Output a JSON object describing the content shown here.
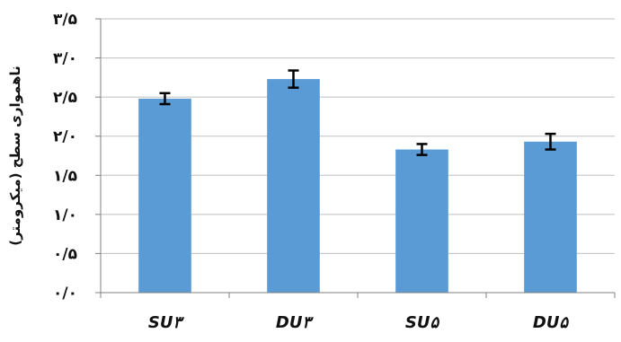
{
  "chart_data": {
    "type": "bar",
    "categories": [
      "SU۳",
      "DU۳",
      "SU۵",
      "DU۵"
    ],
    "values": [
      2.48,
      2.73,
      1.83,
      1.93
    ],
    "errors": [
      0.07,
      0.11,
      0.07,
      0.1
    ],
    "ylabel": "ناهمواری سطح (میکرومتر)",
    "ylim": [
      0,
      3.5
    ],
    "yticks": [
      0,
      0.5,
      1.0,
      1.5,
      2.0,
      2.5,
      3.0,
      3.5
    ],
    "ytick_labels": [
      "۰/۰",
      "۰/۵",
      "۱/۰",
      "۱/۵",
      "۲/۰",
      "۲/۵",
      "۳/۰",
      "۳/۵"
    ],
    "grid": true,
    "legend": "none",
    "bar_color": "#5b9bd5",
    "grid_color": "#bfbfbf",
    "axis_color": "#808080"
  }
}
